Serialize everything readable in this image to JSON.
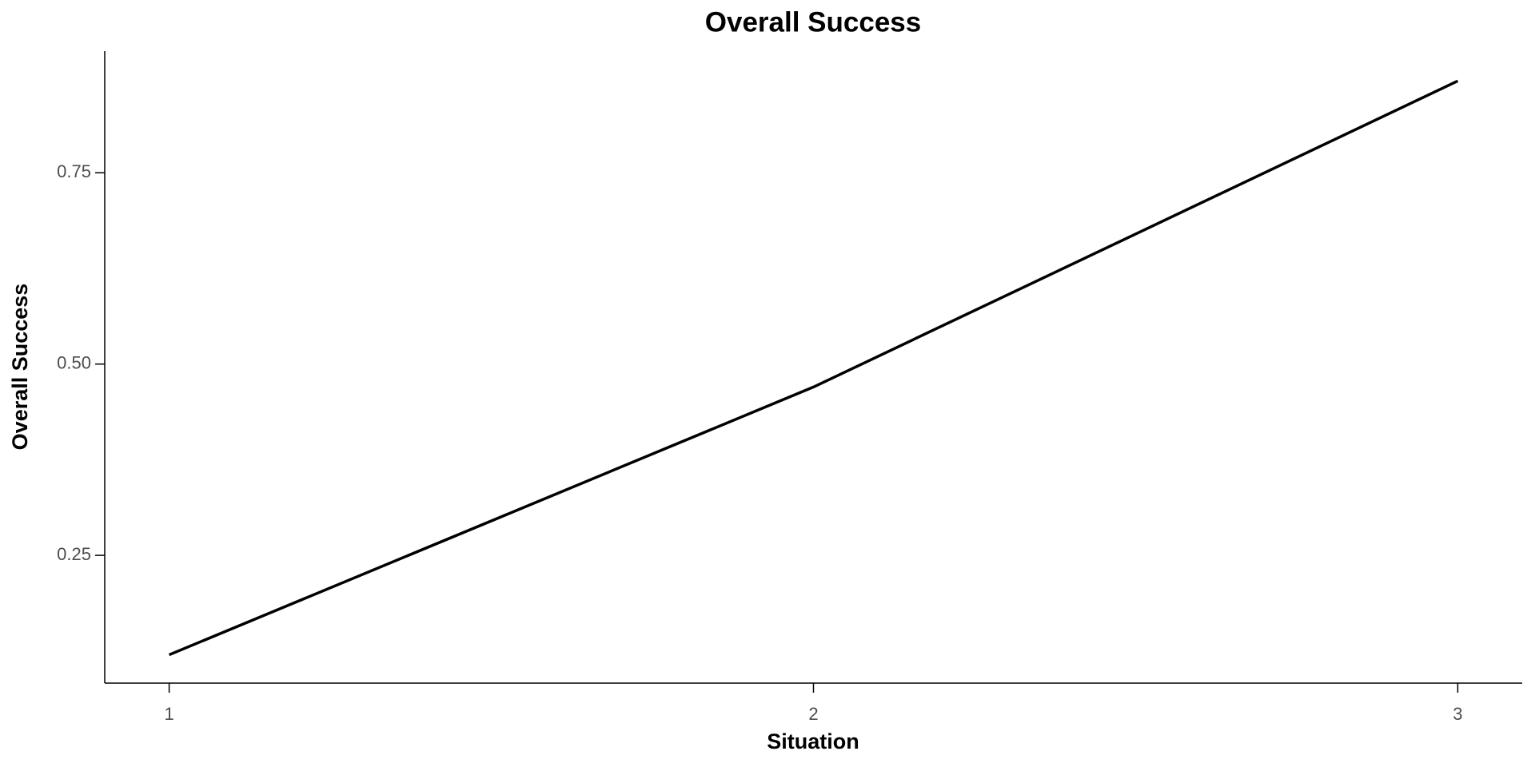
{
  "chart_data": {
    "type": "line",
    "title": "Overall Success",
    "x_label": "Situation",
    "y_label": "Overall Success",
    "x": [
      1,
      2,
      3
    ],
    "series": [
      {
        "name": "Overall Success",
        "color": "#000000",
        "values": [
          0.12,
          0.47,
          0.87
        ]
      }
    ],
    "xlim": [
      0.9,
      3.1
    ],
    "xticks": [
      1,
      2,
      3
    ],
    "ylim": [
      0.083,
      0.909
    ],
    "yticks": [
      0.25,
      {
        "value": 0.5,
        "label": "0.50"
      },
      0.75
    ],
    "grid": false
  }
}
